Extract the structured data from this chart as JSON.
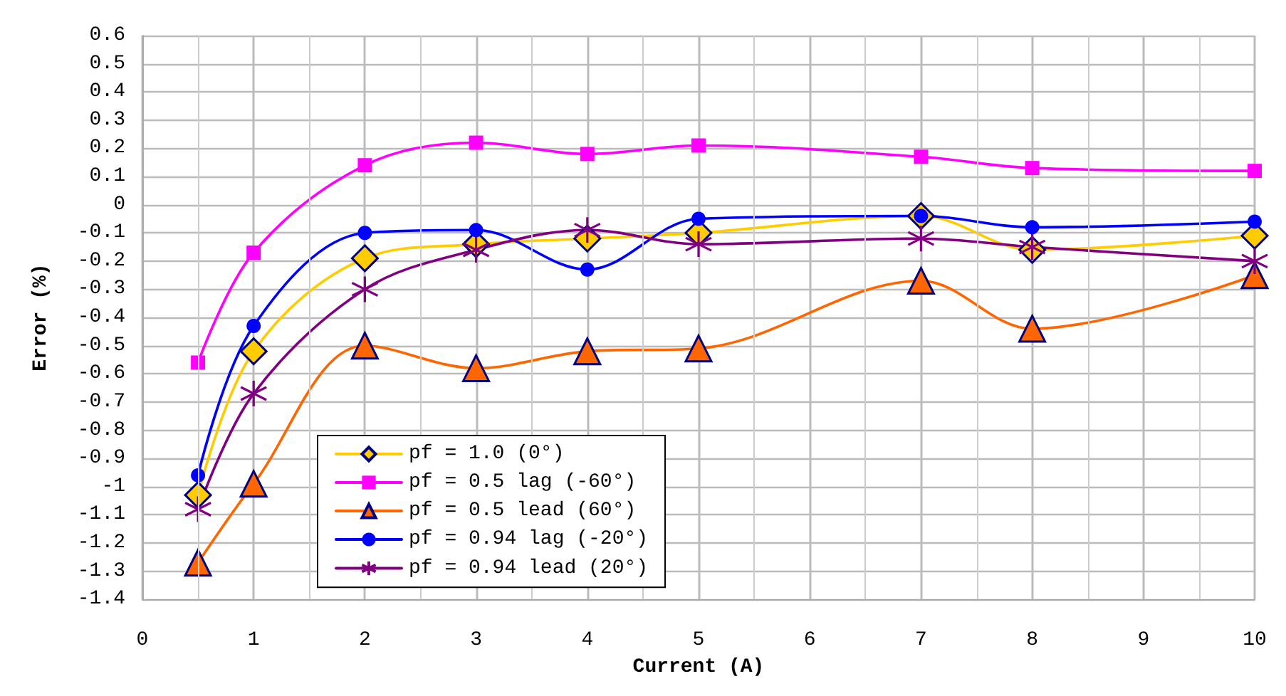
{
  "chart_data": {
    "type": "line",
    "xlabel": "Current (A)",
    "ylabel": "Error (%)",
    "x": [
      0.5,
      1,
      2,
      3,
      4,
      5,
      7,
      8,
      10
    ],
    "xlim": [
      0,
      10
    ],
    "xticks": [
      0,
      1,
      2,
      3,
      4,
      5,
      6,
      7,
      8,
      9,
      10
    ],
    "ylim": [
      -1.4,
      0.6
    ],
    "yticks": [
      -1.4,
      -1.3,
      -1.2,
      -1.1,
      -1,
      -0.9,
      -0.8,
      -0.7,
      -0.6,
      -0.5,
      -0.4,
      -0.3,
      -0.2,
      -0.1,
      0,
      0.1,
      0.2,
      0.3,
      0.4,
      0.5,
      0.6
    ],
    "grid": true,
    "legend": "bottom left",
    "series": [
      {
        "name": "pf = 1.0 (0°)",
        "color": "#ffcc00",
        "marker": "diamond",
        "values": [
          -1.03,
          -0.52,
          -0.19,
          -0.14,
          -0.12,
          -0.1,
          -0.04,
          -0.16,
          -0.11
        ]
      },
      {
        "name": "pf = 0.5 lag (-60°)",
        "color": "#ff00ff",
        "marker": "square",
        "values": [
          -0.56,
          -0.17,
          0.14,
          0.22,
          0.18,
          0.21,
          0.17,
          0.13,
          0.12
        ]
      },
      {
        "name": "pf = 0.5 lead (60°)",
        "color": "#ff6600",
        "marker": "triangle",
        "values": [
          -1.27,
          -0.99,
          -0.5,
          -0.58,
          -0.52,
          -0.51,
          -0.27,
          -0.44,
          -0.25
        ]
      },
      {
        "name": "pf = 0.94 lag (-20°)",
        "color": "#0000ff",
        "marker": "circle",
        "values": [
          -0.96,
          -0.43,
          -0.1,
          -0.09,
          -0.23,
          -0.05,
          -0.04,
          -0.08,
          -0.06
        ]
      },
      {
        "name": "pf = 0.94 lead (20°)",
        "color": "#800080",
        "marker": "cross",
        "values": [
          -1.08,
          -0.67,
          -0.3,
          -0.16,
          -0.09,
          -0.14,
          -0.12,
          -0.15,
          -0.2
        ]
      }
    ]
  }
}
